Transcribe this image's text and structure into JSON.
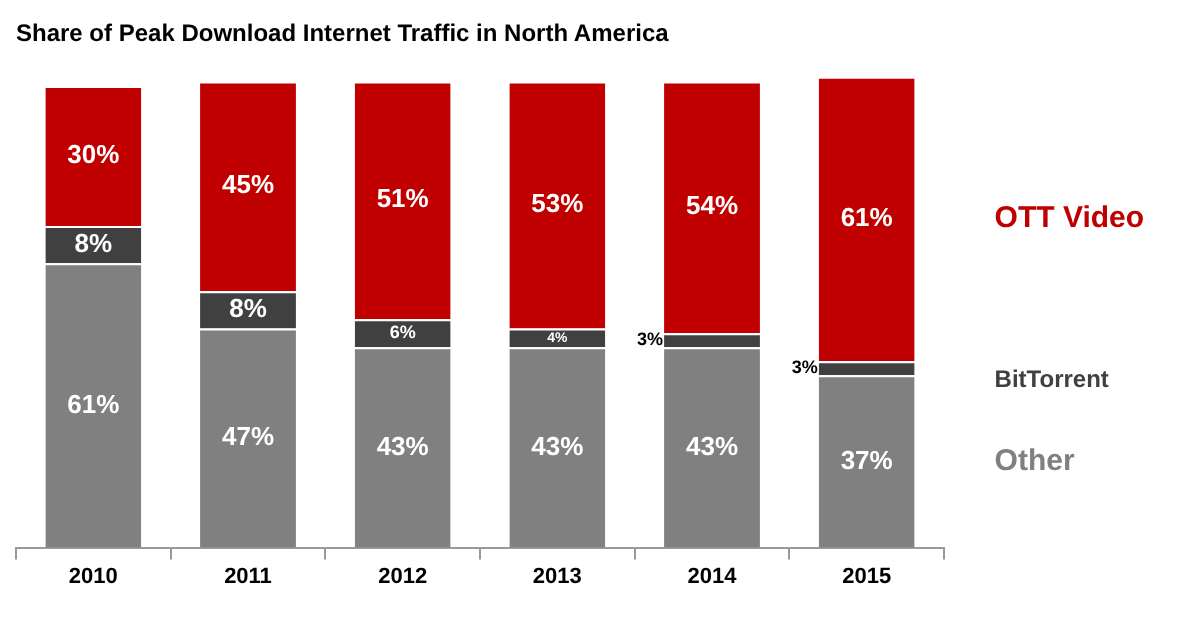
{
  "chart_data": {
    "type": "bar",
    "title": "Share of Peak Download Internet Traffic in North America",
    "categories": [
      "2010",
      "2011",
      "2012",
      "2013",
      "2014",
      "2015"
    ],
    "stacked": true,
    "data_labels": true,
    "legend": false,
    "grid": false,
    "series": [
      {
        "name": "Other",
        "color": "#808080",
        "values": [
          61,
          47,
          43,
          43,
          43,
          37
        ],
        "value_labels": [
          "61%",
          "47%",
          "43%",
          "43%",
          "43%",
          "37%"
        ]
      },
      {
        "name": "BitTorrent",
        "color": "#404040",
        "values": [
          8,
          8,
          6,
          4,
          3,
          3
        ],
        "value_labels": [
          "8%",
          "8%",
          "6%",
          "4%",
          "3%",
          "3%"
        ]
      },
      {
        "name": "OTT Video",
        "color": "#c00000",
        "values": [
          30,
          45,
          51,
          53,
          54,
          61
        ],
        "value_labels": [
          "30%",
          "45%",
          "51%",
          "53%",
          "54%",
          "61%"
        ]
      }
    ]
  }
}
